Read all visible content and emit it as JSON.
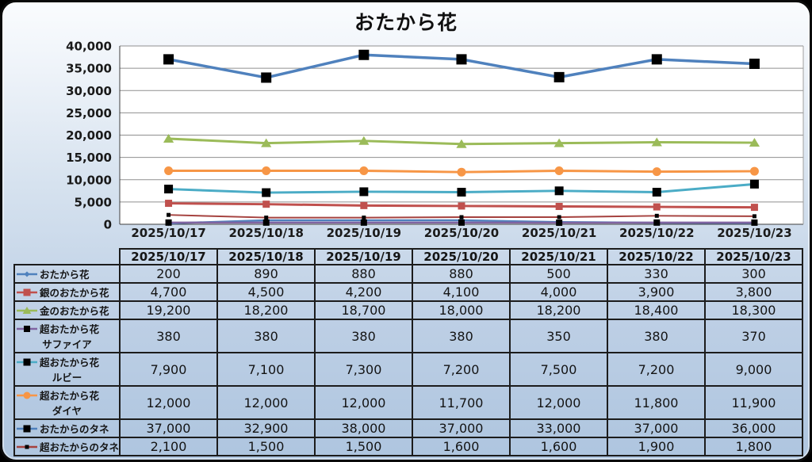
{
  "panel": {
    "background_top": "#fafcfe",
    "background_bottom": "#aec5df",
    "border_color": "#0b0b0b"
  },
  "chart_data": {
    "type": "line",
    "title": "おたから花",
    "xlabel": "",
    "ylabel": "",
    "ylim": [
      0,
      40000
    ],
    "ytick_step": 5000,
    "grid": true,
    "legend_position": "table-left",
    "categories": [
      "2025/10/17",
      "2025/10/18",
      "2025/10/19",
      "2025/10/20",
      "2025/10/21",
      "2025/10/22",
      "2025/10/23"
    ],
    "series": [
      {
        "name": "おたから花",
        "label_lines": [
          "おたから花"
        ],
        "color": "#4F81BD",
        "marker": "diamond",
        "marker_color": "#4F81BD",
        "marker_size": 7,
        "line_width": 2.5,
        "values": [
          200,
          890,
          880,
          880,
          500,
          330,
          300
        ]
      },
      {
        "name": "銀のおたから花",
        "label_lines": [
          "銀のおたから花"
        ],
        "color": "#C0504D",
        "marker": "square",
        "marker_color": "#C0504D",
        "marker_size": 9,
        "line_width": 3,
        "values": [
          4700,
          4500,
          4200,
          4100,
          4000,
          3900,
          3800
        ]
      },
      {
        "name": "金のおたから花",
        "label_lines": [
          "金のおたから花"
        ],
        "color": "#9BBB59",
        "marker": "triangle",
        "marker_color": "#9BBB59",
        "marker_size": 11,
        "line_width": 3,
        "values": [
          19200,
          18200,
          18700,
          18000,
          18200,
          18400,
          18300
        ]
      },
      {
        "name": "超おたから花サファイア",
        "label_lines": [
          "超おたから花",
          "サファイア"
        ],
        "color": "#8064A2",
        "marker": "square",
        "marker_color": "#000000",
        "marker_size": 8,
        "line_width": 2.5,
        "values": [
          380,
          380,
          380,
          380,
          350,
          380,
          370
        ]
      },
      {
        "name": "超おたから花ルビー",
        "label_lines": [
          "超おたから花",
          "ルビー"
        ],
        "color": "#4BACC6",
        "marker": "square",
        "marker_color": "#000000",
        "marker_size": 11,
        "line_width": 3,
        "values": [
          7900,
          7100,
          7300,
          7200,
          7500,
          7200,
          9000
        ]
      },
      {
        "name": "超おたから花ダイヤ",
        "label_lines": [
          "超おたから花",
          "ダイヤ"
        ],
        "color": "#F79646",
        "marker": "circle",
        "marker_color": "#F79646",
        "marker_size": 11,
        "line_width": 3,
        "values": [
          12000,
          12000,
          12000,
          11700,
          12000,
          11800,
          11900
        ]
      },
      {
        "name": "おたからのタネ",
        "label_lines": [
          "おたからのタネ"
        ],
        "color": "#4F81BD",
        "marker": "square",
        "marker_color": "#000000",
        "marker_size": 13,
        "line_width": 3.5,
        "values": [
          37000,
          32900,
          38000,
          37000,
          33000,
          37000,
          36000
        ]
      },
      {
        "name": "超おたからのタネ",
        "label_lines": [
          "超おたからのタネ"
        ],
        "color": "#A5413E",
        "marker": "square",
        "marker_color": "#000000",
        "marker_size": 5,
        "line_width": 2,
        "values": [
          2100,
          1500,
          1500,
          1600,
          1600,
          1900,
          1800
        ]
      }
    ]
  }
}
